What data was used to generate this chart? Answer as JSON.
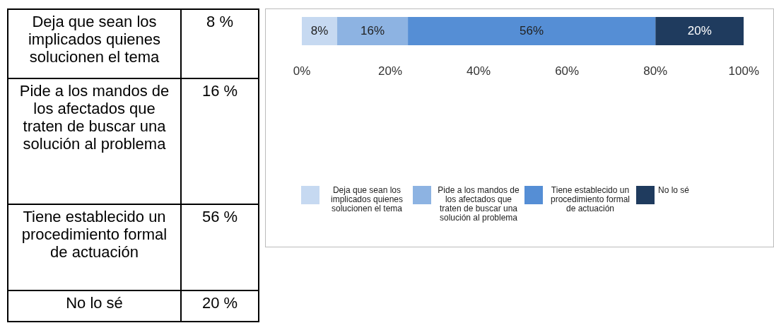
{
  "chart_data": {
    "type": "bar",
    "orientation": "horizontal",
    "stacked": true,
    "categories": [
      null
    ],
    "series": [
      {
        "name": "Deja que sean los implicados quienes solucionen el tema",
        "color": "#c6d9f1",
        "values": [
          8
        ],
        "value_labels": [
          "8%"
        ]
      },
      {
        "name": "Pide a los mandos de los afectados que traten de buscar una solución al problema",
        "color": "#8db3e2",
        "values": [
          16
        ],
        "value_labels": [
          "16%"
        ]
      },
      {
        "name": "Tiene establecido un procedimiento formal de actuación",
        "color": "#558ed5",
        "values": [
          56
        ],
        "value_labels": [
          "56%"
        ]
      },
      {
        "name": "No lo sé",
        "color": "#1f3b5e",
        "values": [
          20
        ],
        "value_labels": [
          "20%"
        ]
      }
    ],
    "xlim": [
      0,
      100
    ],
    "xticks": [
      {
        "value": 0,
        "label": "0%"
      },
      {
        "value": 20,
        "label": "20%"
      },
      {
        "value": 40,
        "label": "40%"
      },
      {
        "value": 60,
        "label": "60%"
      },
      {
        "value": 80,
        "label": "80%"
      },
      {
        "value": 100,
        "label": "100%"
      }
    ],
    "grid": false,
    "legend": "bottom",
    "tick_labels": "x",
    "annotations": [
      "8 %",
      "16 %",
      "56 %",
      "20 %"
    ]
  }
}
